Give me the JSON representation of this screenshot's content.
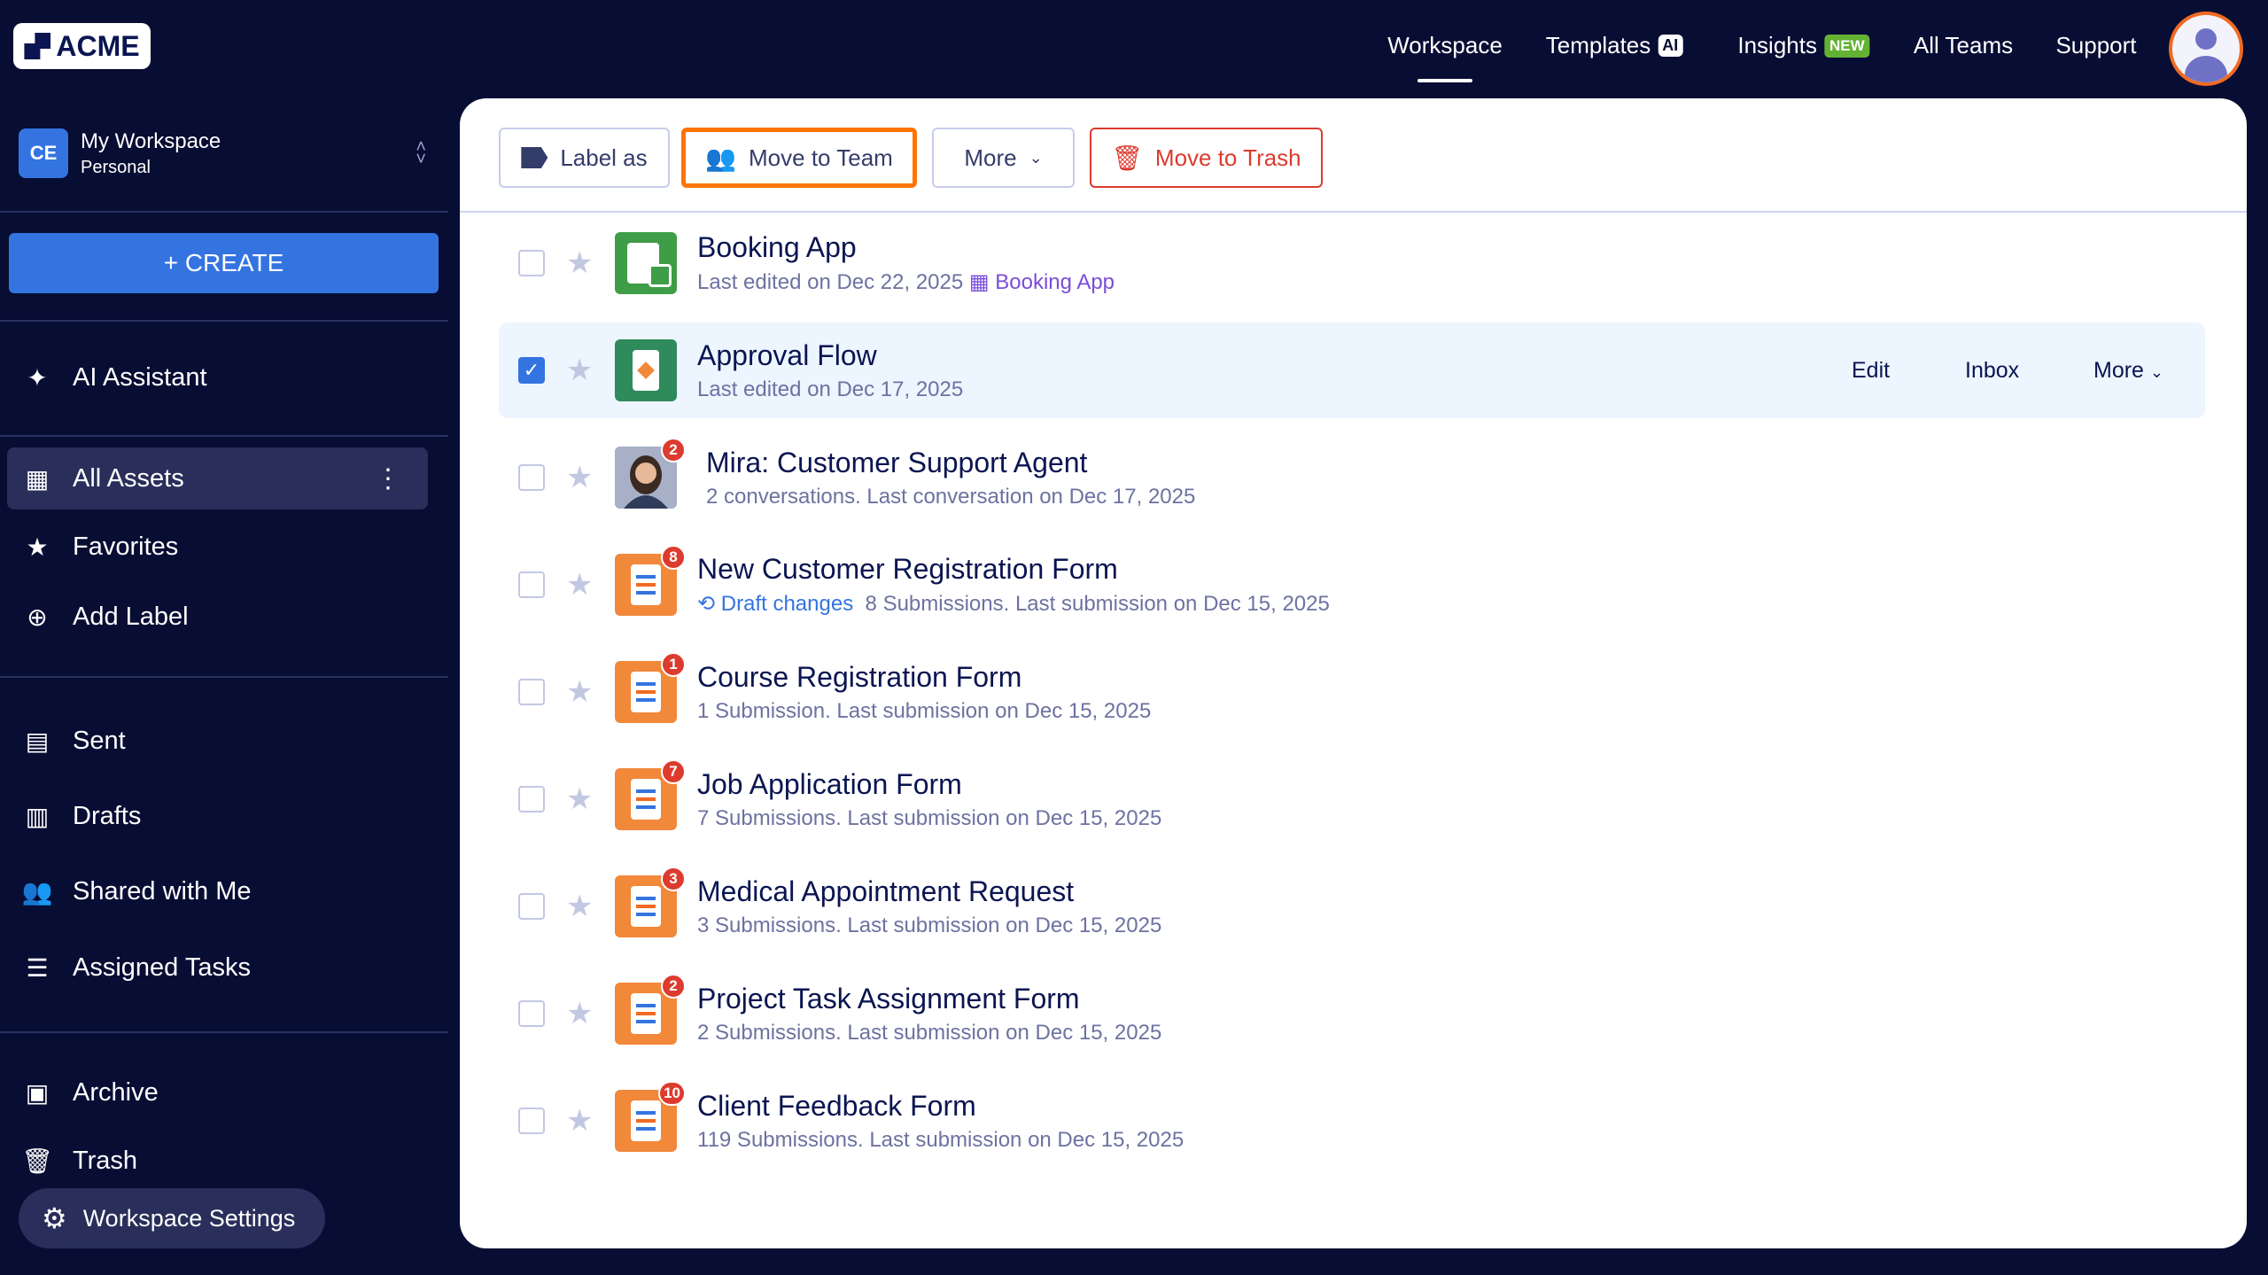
{
  "brand": "ACME",
  "nav": {
    "items": [
      {
        "label": "Workspace",
        "active": true
      },
      {
        "label": "Templates",
        "tag": "AI"
      },
      {
        "label": "Insights",
        "tag": "NEW"
      },
      {
        "label": "All Teams"
      },
      {
        "label": "Support"
      }
    ]
  },
  "workspace": {
    "initials": "CE",
    "name": "My Workspace",
    "type": "Personal"
  },
  "sidebar": {
    "create": "+ CREATE",
    "ai": "AI Assistant",
    "items": [
      {
        "label": "All Assets",
        "icon": "grid-icon"
      },
      {
        "label": "Favorites",
        "icon": "star-icon"
      },
      {
        "label": "Add Label",
        "icon": "plus-circle-icon"
      },
      {
        "label": "Sent",
        "icon": "message-icon"
      },
      {
        "label": "Drafts",
        "icon": "draft-icon"
      },
      {
        "label": "Shared with Me",
        "icon": "users-icon"
      },
      {
        "label": "Assigned Tasks",
        "icon": "list-icon"
      },
      {
        "label": "Archive",
        "icon": "archive-icon"
      },
      {
        "label": "Trash",
        "icon": "trash-icon"
      }
    ],
    "settings": "Workspace Settings"
  },
  "toolbar": {
    "label_as": "Label as",
    "move_to_team": "Move to Team",
    "more": "More",
    "move_to_trash": "Move to Trash"
  },
  "row_actions": {
    "edit": "Edit",
    "inbox": "Inbox",
    "more": "More"
  },
  "colors": {
    "bg": "#070d33",
    "accent": "#3474e0",
    "highlight": "#ff7300",
    "danger": "#dc3b2e",
    "form": "#f1883a",
    "app": "#3f9c47"
  },
  "assets": [
    {
      "title": "Booking App",
      "sub": "Last edited on Dec 22, 2025",
      "link": "Booking App",
      "type": "app",
      "checked": false
    },
    {
      "title": "Approval Flow",
      "sub": "Last edited on Dec 17, 2025",
      "type": "flow",
      "checked": true
    },
    {
      "title": "Mira: Customer Support Agent",
      "sub": "2 conversations. Last conversation on Dec 17, 2025",
      "type": "agent",
      "badge": "2",
      "checked": false
    },
    {
      "title": "New Customer Registration Form",
      "draft": "Draft changes",
      "sub": "8 Submissions. Last submission on Dec 15, 2025",
      "type": "form",
      "badge": "8",
      "checked": false
    },
    {
      "title": "Course Registration Form",
      "sub": "1 Submission. Last submission on Dec 15, 2025",
      "type": "form",
      "badge": "1",
      "checked": false
    },
    {
      "title": "Job Application Form",
      "sub": "7 Submissions. Last submission on Dec 15, 2025",
      "type": "form",
      "badge": "7",
      "checked": false
    },
    {
      "title": "Medical Appointment Request",
      "sub": "3 Submissions. Last submission on Dec 15, 2025",
      "type": "form",
      "badge": "3",
      "checked": false
    },
    {
      "title": "Project Task Assignment Form",
      "sub": "2 Submissions. Last submission on Dec 15, 2025",
      "type": "form",
      "badge": "2",
      "checked": false
    },
    {
      "title": "Client Feedback Form",
      "sub": "119 Submissions. Last submission on Dec 15, 2025",
      "type": "form",
      "badge": "10",
      "checked": false
    }
  ]
}
